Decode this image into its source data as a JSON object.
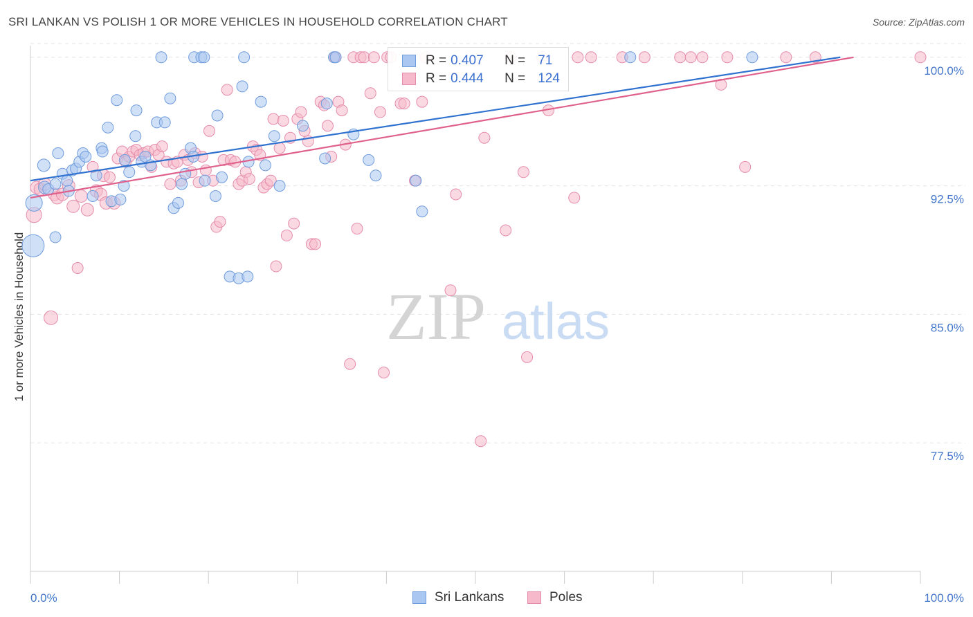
{
  "title": "SRI LANKAN VS POLISH 1 OR MORE VEHICLES IN HOUSEHOLD CORRELATION CHART",
  "source": "Source: ZipAtlas.com",
  "watermark": {
    "zip": "ZIP",
    "atlas": "atlas"
  },
  "stats": [
    {
      "r_label": "R =",
      "r_value": "0.407",
      "n_label": "N =",
      "n_value": "71"
    },
    {
      "r_label": "R =",
      "r_value": "0.444",
      "n_label": "N =",
      "n_value": "124"
    }
  ],
  "colors": {
    "sri_lankans_fill": "#a9c7f0",
    "sri_lankans_stroke": "#6f9bdc",
    "sri_lankans_line": "#2f72cf",
    "poles_fill": "#f5b9cb",
    "poles_stroke": "#e58cab",
    "poles_line": "#e0608c",
    "tick_text": "#4477cc",
    "grid": "#e3e3e3"
  },
  "chart_data": {
    "type": "scatter",
    "title": "SRI LANKAN VS POLISH 1 OR MORE VEHICLES IN HOUSEHOLD CORRELATION CHART",
    "xlabel": "",
    "ylabel": "1 or more Vehicles in Household",
    "xlim": [
      0,
      100
    ],
    "ylim": [
      70.0,
      101.0
    ],
    "x_tick_labels": [
      "0.0%",
      "100.0%"
    ],
    "y_ticks": [
      77.5,
      85.0,
      92.5,
      100.0
    ],
    "y_tick_labels": [
      "77.5%",
      "85.0%",
      "92.5%",
      "100.0%"
    ],
    "grid": "horizontal dashed",
    "legend_position": "bottom-center",
    "series": [
      {
        "name": "Sri Lankans",
        "r": 0.407,
        "n": 71,
        "trend": [
          [
            0,
            92.8
          ],
          [
            91,
            100.0
          ]
        ],
        "points": [
          [
            0.3,
            89.0,
            16
          ],
          [
            0.4,
            91.5,
            12
          ],
          [
            1.5,
            93.7,
            9
          ],
          [
            1.6,
            92.4,
            9
          ],
          [
            2.0,
            92.3,
            8
          ],
          [
            2.8,
            92.6,
            8
          ],
          [
            2.8,
            89.5,
            8
          ],
          [
            3.1,
            94.4,
            8
          ],
          [
            3.6,
            93.2,
            8
          ],
          [
            4.1,
            92.8,
            8
          ],
          [
            4.3,
            92.2,
            8
          ],
          [
            4.7,
            93.4,
            8
          ],
          [
            5.1,
            93.5,
            8
          ],
          [
            5.5,
            93.9,
            8
          ],
          [
            5.9,
            94.4,
            8
          ],
          [
            6.2,
            94.2,
            8
          ],
          [
            7.0,
            91.9,
            8
          ],
          [
            7.4,
            93.1,
            8
          ],
          [
            8.0,
            94.7,
            8
          ],
          [
            8.1,
            94.5,
            8
          ],
          [
            8.7,
            95.9,
            8
          ],
          [
            9.1,
            91.6,
            8
          ],
          [
            9.7,
            97.5,
            8
          ],
          [
            10.1,
            91.7,
            8
          ],
          [
            10.5,
            92.5,
            8
          ],
          [
            10.6,
            94.0,
            8
          ],
          [
            11.1,
            93.3,
            8
          ],
          [
            11.8,
            95.4,
            8
          ],
          [
            11.9,
            96.9,
            8
          ],
          [
            12.5,
            93.9,
            8
          ],
          [
            12.9,
            94.2,
            8
          ],
          [
            13.5,
            93.7,
            8
          ],
          [
            14.2,
            96.2,
            8
          ],
          [
            14.7,
            100.0,
            8
          ],
          [
            15.1,
            96.2,
            8
          ],
          [
            15.7,
            97.6,
            8
          ],
          [
            16.1,
            91.2,
            8
          ],
          [
            16.6,
            91.5,
            8
          ],
          [
            17.0,
            92.6,
            8
          ],
          [
            17.4,
            93.2,
            8
          ],
          [
            18.0,
            94.7,
            8
          ],
          [
            18.3,
            94.2,
            8
          ],
          [
            18.4,
            100.0,
            8
          ],
          [
            19.2,
            100.0,
            8
          ],
          [
            19.5,
            100.0,
            8
          ],
          [
            19.6,
            92.8,
            8
          ],
          [
            20.8,
            91.9,
            8
          ],
          [
            21.0,
            96.6,
            8
          ],
          [
            21.5,
            93.0,
            8
          ],
          [
            22.4,
            87.2,
            8
          ],
          [
            23.4,
            87.1,
            8
          ],
          [
            23.8,
            98.3,
            8
          ],
          [
            24.0,
            100.0,
            8
          ],
          [
            24.4,
            87.2,
            8
          ],
          [
            24.5,
            93.9,
            8
          ],
          [
            25.9,
            97.4,
            8
          ],
          [
            26.4,
            93.7,
            8
          ],
          [
            27.4,
            95.4,
            8
          ],
          [
            28.0,
            92.5,
            8
          ],
          [
            30.6,
            96.0,
            8
          ],
          [
            33.1,
            94.1,
            8
          ],
          [
            33.3,
            97.3,
            8
          ],
          [
            34.1,
            100.0,
            8
          ],
          [
            34.3,
            100.0,
            8
          ],
          [
            36.3,
            95.5,
            8
          ],
          [
            38.0,
            94.0,
            8
          ],
          [
            38.8,
            93.1,
            8
          ],
          [
            43.3,
            92.8,
            8
          ],
          [
            44.0,
            91.0,
            8
          ],
          [
            67.4,
            100.0,
            8
          ],
          [
            81.1,
            100.0,
            8
          ]
        ]
      },
      {
        "name": "Poles",
        "r": 0.444,
        "n": 124,
        "trend": [
          [
            0,
            91.8
          ],
          [
            92.5,
            100.0
          ]
        ],
        "points": [
          [
            0.4,
            90.8,
            11
          ],
          [
            0.7,
            92.4,
            9
          ],
          [
            1.1,
            92.3,
            9
          ],
          [
            1.6,
            92.6,
            9
          ],
          [
            2.3,
            84.8,
            10
          ],
          [
            2.7,
            92.0,
            9
          ],
          [
            3.0,
            91.8,
            9
          ],
          [
            3.6,
            92.0,
            9
          ],
          [
            4.3,
            92.5,
            9
          ],
          [
            4.8,
            91.3,
            9
          ],
          [
            5.3,
            87.7,
            8
          ],
          [
            5.7,
            91.9,
            9
          ],
          [
            6.4,
            91.1,
            9
          ],
          [
            7.0,
            93.6,
            8
          ],
          [
            7.4,
            92.2,
            9
          ],
          [
            7.9,
            92.0,
            9
          ],
          [
            8.2,
            93.1,
            9
          ],
          [
            8.5,
            91.5,
            9
          ],
          [
            8.9,
            93.0,
            8
          ],
          [
            9.4,
            91.5,
            9
          ],
          [
            9.8,
            94.1,
            8
          ],
          [
            10.3,
            94.5,
            8
          ],
          [
            10.7,
            93.9,
            8
          ],
          [
            11.1,
            94.2,
            8
          ],
          [
            11.5,
            94.5,
            8
          ],
          [
            11.9,
            94.6,
            8
          ],
          [
            12.3,
            94.3,
            8
          ],
          [
            12.7,
            94.4,
            8
          ],
          [
            13.2,
            94.5,
            8
          ],
          [
            13.6,
            93.6,
            8
          ],
          [
            14.0,
            94.6,
            8
          ],
          [
            14.4,
            94.3,
            8
          ],
          [
            14.8,
            94.8,
            8
          ],
          [
            15.3,
            93.9,
            8
          ],
          [
            15.7,
            92.6,
            8
          ],
          [
            16.1,
            93.8,
            8
          ],
          [
            16.5,
            93.9,
            8
          ],
          [
            16.9,
            92.8,
            8
          ],
          [
            17.3,
            94.3,
            8
          ],
          [
            17.7,
            94.0,
            8
          ],
          [
            18.1,
            93.3,
            8
          ],
          [
            18.5,
            94.4,
            8
          ],
          [
            18.9,
            92.7,
            8
          ],
          [
            19.3,
            94.2,
            8
          ],
          [
            19.7,
            93.4,
            8
          ],
          [
            20.1,
            95.7,
            8
          ],
          [
            20.5,
            92.8,
            8
          ],
          [
            20.9,
            90.1,
            8
          ],
          [
            21.3,
            90.4,
            8
          ],
          [
            21.7,
            94.0,
            8
          ],
          [
            22.1,
            98.1,
            8
          ],
          [
            22.5,
            94.0,
            8
          ],
          [
            23.0,
            93.9,
            8
          ],
          [
            23.4,
            92.6,
            8
          ],
          [
            23.8,
            92.8,
            8
          ],
          [
            24.2,
            93.3,
            8
          ],
          [
            24.6,
            92.9,
            8
          ],
          [
            25.0,
            94.8,
            8
          ],
          [
            25.4,
            94.6,
            8
          ],
          [
            25.8,
            94.3,
            8
          ],
          [
            26.2,
            92.4,
            8
          ],
          [
            26.6,
            92.6,
            8
          ],
          [
            27.0,
            92.8,
            8
          ],
          [
            27.3,
            96.4,
            8
          ],
          [
            27.6,
            87.8,
            8
          ],
          [
            28.0,
            94.7,
            8
          ],
          [
            28.4,
            96.3,
            8
          ],
          [
            28.8,
            89.6,
            8
          ],
          [
            29.2,
            95.3,
            8
          ],
          [
            29.6,
            90.3,
            8
          ],
          [
            30.0,
            96.4,
            8
          ],
          [
            30.4,
            96.8,
            8
          ],
          [
            30.8,
            95.7,
            8
          ],
          [
            31.2,
            95.1,
            8
          ],
          [
            31.6,
            89.1,
            8
          ],
          [
            32.0,
            89.1,
            8
          ],
          [
            32.6,
            97.4,
            8
          ],
          [
            33.0,
            97.2,
            8
          ],
          [
            33.4,
            96.0,
            8
          ],
          [
            33.8,
            94.2,
            8
          ],
          [
            34.2,
            100.0,
            8
          ],
          [
            34.6,
            97.4,
            8
          ],
          [
            35.0,
            96.9,
            8
          ],
          [
            35.4,
            94.9,
            8
          ],
          [
            35.9,
            82.1,
            8
          ],
          [
            36.3,
            100.0,
            8
          ],
          [
            36.7,
            90.0,
            8
          ],
          [
            37.1,
            100.0,
            8
          ],
          [
            37.5,
            100.0,
            8
          ],
          [
            38.2,
            97.9,
            8
          ],
          [
            38.6,
            100.0,
            8
          ],
          [
            39.3,
            96.8,
            8
          ],
          [
            39.7,
            81.6,
            8
          ],
          [
            40.1,
            100.0,
            8
          ],
          [
            40.5,
            100.0,
            8
          ],
          [
            41.6,
            97.3,
            8
          ],
          [
            42.0,
            97.3,
            8
          ],
          [
            43.2,
            92.8,
            8
          ],
          [
            44.0,
            97.4,
            8
          ],
          [
            44.4,
            100.0,
            8
          ],
          [
            47.2,
            86.4,
            8
          ],
          [
            47.8,
            92.0,
            8
          ],
          [
            50.6,
            77.6,
            8
          ],
          [
            51.0,
            95.3,
            8
          ],
          [
            53.4,
            89.9,
            8
          ],
          [
            54.0,
            100.0,
            8
          ],
          [
            55.4,
            93.3,
            8
          ],
          [
            55.8,
            82.5,
            8
          ],
          [
            57.5,
            100.0,
            8
          ],
          [
            58.2,
            96.9,
            8
          ],
          [
            61.1,
            91.8,
            8
          ],
          [
            61.5,
            100.0,
            8
          ],
          [
            63.0,
            100.0,
            8
          ],
          [
            66.5,
            100.0,
            8
          ],
          [
            69.0,
            100.0,
            8
          ],
          [
            73.0,
            100.0,
            8
          ],
          [
            74.2,
            100.0,
            8
          ],
          [
            75.5,
            100.0,
            8
          ],
          [
            77.6,
            98.4,
            8
          ],
          [
            78.3,
            100.0,
            8
          ],
          [
            80.3,
            93.6,
            8
          ],
          [
            84.9,
            100.0,
            8
          ],
          [
            88.2,
            100.0,
            8
          ],
          [
            100.0,
            100.0,
            8
          ]
        ]
      }
    ]
  },
  "legend": [
    {
      "label": "Sri Lankans"
    },
    {
      "label": "Poles"
    }
  ]
}
